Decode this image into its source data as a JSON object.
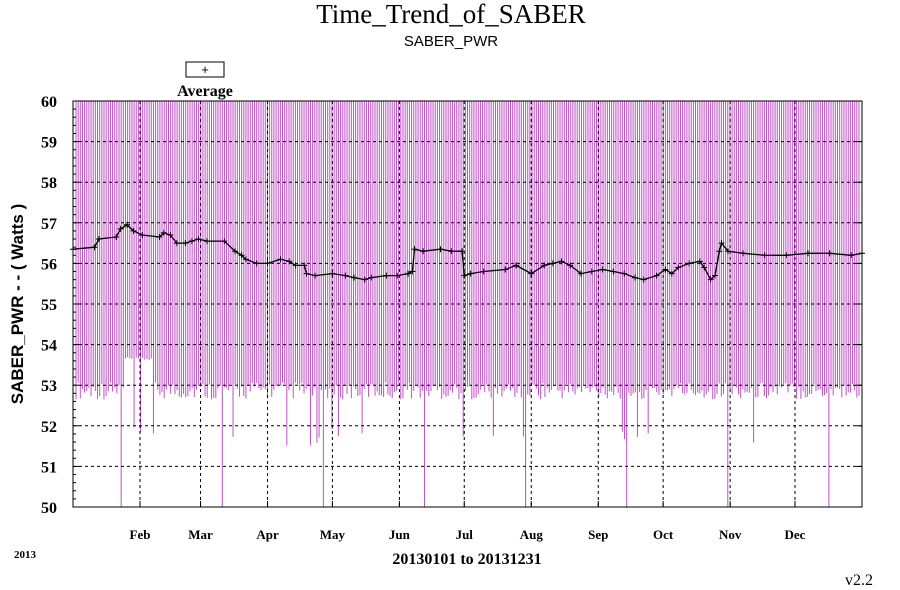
{
  "chart_data": {
    "type": "line",
    "title": "Time_Trend_of_SABER",
    "subtitle": "SABER_PWR",
    "ylabel": "SABER_PWR - - ( Watts )",
    "xlabel": "20130101 to 20131231",
    "year_label": "2013",
    "version": "v2.2",
    "ylim": [
      50,
      60
    ],
    "yticks": [
      50,
      51,
      52,
      53,
      54,
      55,
      56,
      57,
      58,
      59,
      60
    ],
    "month_labels": [
      "Feb",
      "Mar",
      "Apr",
      "May",
      "Jun",
      "Jul",
      "Aug",
      "Sep",
      "Oct",
      "Nov",
      "Dec"
    ],
    "month_day": [
      31,
      59,
      90,
      120,
      151,
      181,
      212,
      243,
      273,
      304,
      334
    ],
    "xlim_days": [
      0,
      365
    ],
    "grid": true,
    "legend": {
      "label": "Average",
      "marker": "+",
      "placement": "top-left"
    },
    "colors": {
      "range": "#c050c8",
      "average": "#000000",
      "grid": "#000000"
    },
    "series": [
      {
        "name": "Average",
        "marker": "+",
        "x_day": [
          0,
          10,
          12,
          20,
          22,
          25,
          28,
          32,
          40,
          42,
          45,
          48,
          52,
          55,
          58,
          62,
          70,
          75,
          78,
          80,
          85,
          90,
          96,
          100,
          103,
          107,
          108,
          112,
          120,
          126,
          130,
          135,
          138,
          145,
          150,
          155,
          157,
          158,
          162,
          170,
          175,
          180,
          181,
          184,
          190,
          200,
          205,
          212,
          218,
          222,
          226,
          230,
          235,
          240,
          245,
          250,
          255,
          260,
          264,
          270,
          274,
          277,
          280,
          285,
          290,
          292,
          295,
          297,
          299,
          300,
          303,
          310,
          320,
          330,
          340,
          350,
          360,
          365
        ],
        "y": [
          56.35,
          56.4,
          56.6,
          56.65,
          56.85,
          56.95,
          56.8,
          56.7,
          56.65,
          56.75,
          56.7,
          56.5,
          56.5,
          56.55,
          56.6,
          56.55,
          56.55,
          56.3,
          56.2,
          56.1,
          56.0,
          56.0,
          56.1,
          56.05,
          55.95,
          55.95,
          55.75,
          55.7,
          55.75,
          55.7,
          55.65,
          55.6,
          55.65,
          55.7,
          55.7,
          55.75,
          55.8,
          56.35,
          56.3,
          56.35,
          56.3,
          56.3,
          55.7,
          55.75,
          55.8,
          55.85,
          55.95,
          55.75,
          55.95,
          56.0,
          56.05,
          55.95,
          55.75,
          55.8,
          55.85,
          55.8,
          55.75,
          55.65,
          55.6,
          55.7,
          55.85,
          55.75,
          55.9,
          56.0,
          56.05,
          55.9,
          55.6,
          55.7,
          56.3,
          56.5,
          56.3,
          56.25,
          56.2,
          56.2,
          56.25,
          56.25,
          56.2,
          56.25
        ]
      }
    ]
  }
}
